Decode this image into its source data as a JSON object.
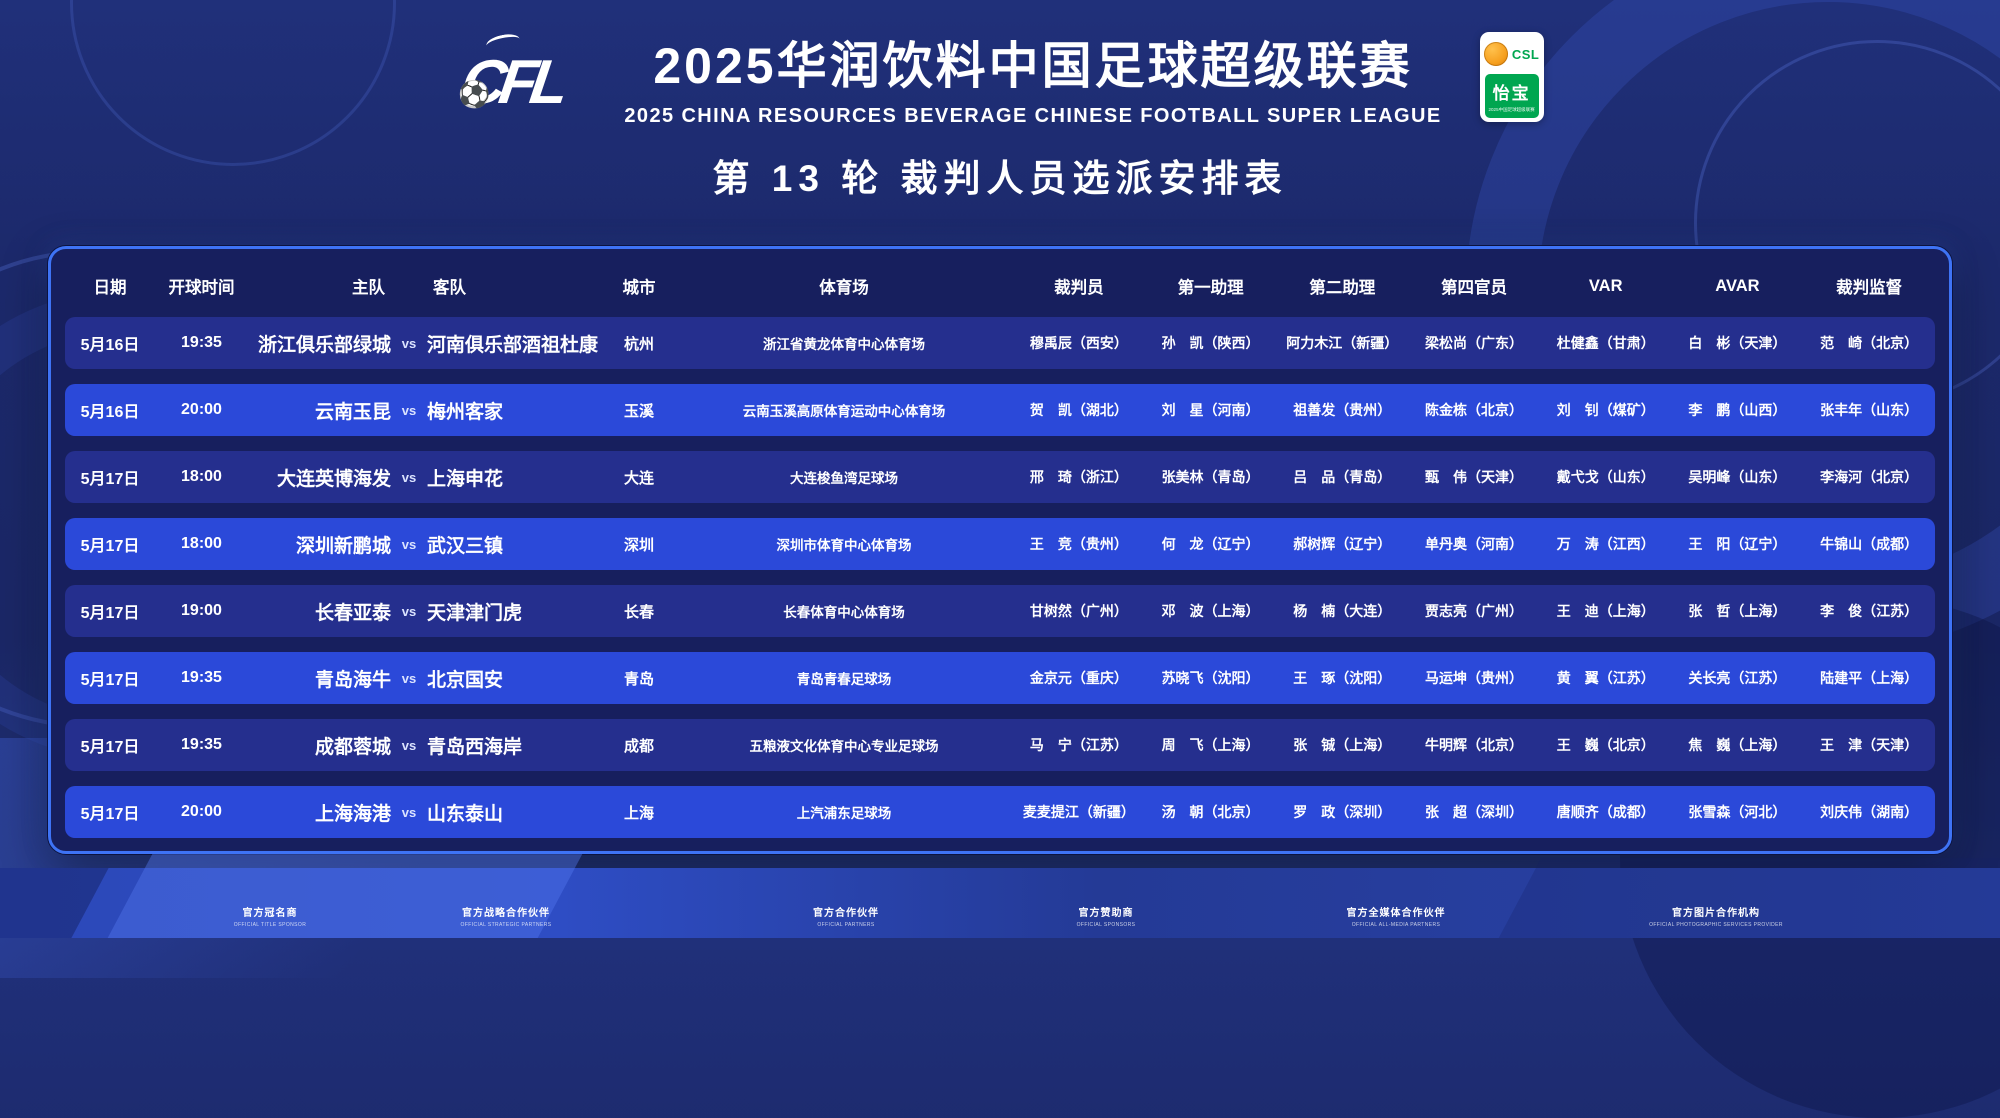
{
  "theme": {
    "background_navy": "#1C296B",
    "row_bright_blue": "#2B49D9",
    "row_dark_indigo": "#252F8E",
    "table_border_blue": "#3E73F5",
    "badge_green": "#00A650",
    "badge_orange": "#F6A01F"
  },
  "header": {
    "logo_text": "CFL",
    "logo_icon": "soccer-ball",
    "title_cn": "2025华润饮料中国足球超级联赛",
    "title_en": "2025 CHINA RESOURCES BEVERAGE CHINESE FOOTBALL SUPER LEAGUE",
    "round_title": "第 13 轮 裁判人员选派安排表",
    "badge": {
      "csl": "CSL",
      "brand": "怡宝",
      "tagline": "2025中国足球超级联赛"
    }
  },
  "table": {
    "columns": [
      "日期",
      "开球时间",
      "主队",
      "客队",
      "城市",
      "体育场",
      "裁判员",
      "第一助理",
      "第二助理",
      "第四官员",
      "VAR",
      "AVAR",
      "裁判监督"
    ],
    "vs_label": "vs",
    "rows": [
      {
        "date": "5月16日",
        "time": "19:35",
        "home": "浙江俱乐部绿城",
        "away": "河南俱乐部酒祖杜康",
        "city": "杭州",
        "stadium": "浙江省黄龙体育中心体育场",
        "referee": "穆禹辰（西安）",
        "ar1": "孙　凯（陕西）",
        "ar2": "阿力木江（新疆）",
        "fourth": "梁松尚（广东）",
        "var": "杜健鑫（甘肃）",
        "avar": "白　彬（天津）",
        "supervisor": "范　崎（北京）"
      },
      {
        "date": "5月16日",
        "time": "20:00",
        "home": "云南玉昆",
        "away": "梅州客家",
        "city": "玉溪",
        "stadium": "云南玉溪高原体育运动中心体育场",
        "referee": "贺　凯（湖北）",
        "ar1": "刘　星（河南）",
        "ar2": "祖善发（贵州）",
        "fourth": "陈金栋（北京）",
        "var": "刘　钊（煤矿）",
        "avar": "李　鹏（山西）",
        "supervisor": "张丰年（山东）"
      },
      {
        "date": "5月17日",
        "time": "18:00",
        "home": "大连英博海发",
        "away": "上海申花",
        "city": "大连",
        "stadium": "大连梭鱼湾足球场",
        "referee": "邢　琦（浙江）",
        "ar1": "张美林（青岛）",
        "ar2": "吕　品（青岛）",
        "fourth": "甄　伟（天津）",
        "var": "戴弋戈（山东）",
        "avar": "吴明峰（山东）",
        "supervisor": "李海河（北京）"
      },
      {
        "date": "5月17日",
        "time": "18:00",
        "home": "深圳新鹏城",
        "away": "武汉三镇",
        "city": "深圳",
        "stadium": "深圳市体育中心体育场",
        "referee": "王　竞（贵州）",
        "ar1": "何　龙（辽宁）",
        "ar2": "郝树辉（辽宁）",
        "fourth": "单丹奥（河南）",
        "var": "万　涛（江西）",
        "avar": "王　阳（辽宁）",
        "supervisor": "牛锦山（成都）"
      },
      {
        "date": "5月17日",
        "time": "19:00",
        "home": "长春亚泰",
        "away": "天津津门虎",
        "city": "长春",
        "stadium": "长春体育中心体育场",
        "referee": "甘树然（广州）",
        "ar1": "邓　波（上海）",
        "ar2": "杨　楠（大连）",
        "fourth": "贾志亮（广州）",
        "var": "王　迪（上海）",
        "avar": "张　哲（上海）",
        "supervisor": "李　俊（江苏）"
      },
      {
        "date": "5月17日",
        "time": "19:35",
        "home": "青岛海牛",
        "away": "北京国安",
        "city": "青岛",
        "stadium": "青岛青春足球场",
        "referee": "金京元（重庆）",
        "ar1": "苏晓飞（沈阳）",
        "ar2": "王　琢（沈阳）",
        "fourth": "马运坤（贵州）",
        "var": "黄　翼（江苏）",
        "avar": "关长亮（江苏）",
        "supervisor": "陆建平（上海）"
      },
      {
        "date": "5月17日",
        "time": "19:35",
        "home": "成都蓉城",
        "away": "青岛西海岸",
        "city": "成都",
        "stadium": "五粮液文化体育中心专业足球场",
        "referee": "马　宁（江苏）",
        "ar1": "周　飞（上海）",
        "ar2": "张　铖（上海）",
        "fourth": "牛明辉（北京）",
        "var": "王　巍（北京）",
        "avar": "焦　巍（上海）",
        "supervisor": "王　津（天津）"
      },
      {
        "date": "5月17日",
        "time": "20:00",
        "home": "上海海港",
        "away": "山东泰山",
        "city": "上海",
        "stadium": "上汽浦东足球场",
        "referee": "麦麦提江（新疆）",
        "ar1": "汤　朝（北京）",
        "ar2": "罗　政（深圳）",
        "fourth": "张　超（深圳）",
        "var": "唐顺齐（成都）",
        "avar": "张雪森（河北）",
        "supervisor": "刘庆伟（湖南）"
      }
    ]
  },
  "footer": {
    "categories": [
      {
        "cn": "官方冠名商",
        "en": "OFFICIAL TITLE SPONSOR"
      },
      {
        "cn": "官方战略合作伙伴",
        "en": "OFFICIAL STRATEGIC PARTNERS"
      },
      {
        "cn": "官方合作伙伴",
        "en": "OFFICIAL PARTNERS"
      },
      {
        "cn": "官方赞助商",
        "en": "OFFICIAL SPONSORS"
      },
      {
        "cn": "官方全媒体合作伙伴",
        "en": "OFFICIAL ALL-MEDIA PARTNERS"
      },
      {
        "cn": "官方图片合作机构",
        "en": "OFFICIAL PHOTOGRAPHIC SERVICES PROVIDER"
      }
    ]
  }
}
